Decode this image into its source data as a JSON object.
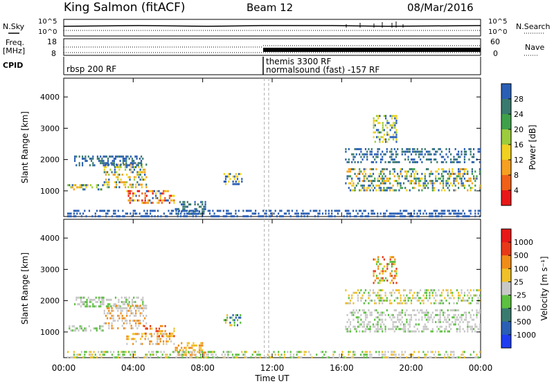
{
  "header": {
    "station": "King Salmon (fitACF)",
    "beam": "Beam 12",
    "date": "08/Mar/2016"
  },
  "left_labels": {
    "nsky": "N.Sky",
    "freq_line1": "Freq.",
    "freq_line2": "[MHz]",
    "cpid": "CPID"
  },
  "right_labels": {
    "nsearch": "N.Search",
    "nave": "Nave"
  },
  "top_axes": {
    "noise_left_ticks": [
      "10^5",
      "10^0"
    ],
    "noise_right_ticks": [
      "10^5",
      "10^0"
    ],
    "freq_ticks": [
      "18",
      "8"
    ],
    "nave_ticks": [
      "60",
      "0"
    ]
  },
  "cpid_labels": [
    {
      "text": "rbsp 200 RF",
      "time": 0.4
    },
    {
      "text": "themis 3300 RF",
      "time": 11.75
    },
    {
      "text": "normalsound (fast) -157 RF",
      "time": 11.75
    }
  ],
  "colors": {
    "power": [
      "#1f3cf0",
      "#2a5fb5",
      "#3a7a6e",
      "#3fa04a",
      "#9ccc3c",
      "#f0d020",
      "#f5a020",
      "#f06018",
      "#e81818"
    ],
    "velocity": [
      "#1f3cf0",
      "#2a5fb5",
      "#3a7a6e",
      "#5cc040",
      "#c8c8c8",
      "#f0c028",
      "#f08c18",
      "#e83818",
      "#e81818"
    ]
  },
  "colorbars": {
    "power": {
      "label": "Power [dB]",
      "ticks": [
        "28",
        "24",
        "20",
        "16",
        "12",
        "8",
        "4"
      ]
    },
    "velocity": {
      "label": "Velocity  [m s⁻¹]",
      "ticks": [
        "1000",
        "500",
        "100",
        "25",
        "-25",
        "-100",
        "-500",
        "-1000"
      ]
    }
  },
  "chart_data": [
    {
      "type": "heatmap",
      "panel": "power",
      "ylabel": "Slant Range [km]",
      "xlabel": "",
      "x_ticks": [
        "00:00",
        "04:00",
        "08:00",
        "12:00",
        "16:00",
        "20:00",
        "00:00"
      ],
      "y_ticks": [
        "1000",
        "2000",
        "3000",
        "4000"
      ],
      "xlim_hours": [
        0,
        24
      ],
      "ylim_km": [
        180,
        4600
      ],
      "dashed_times_hours": [
        11.55,
        11.8
      ],
      "echo_regions": [
        {
          "t0": 0.2,
          "t1": 2.3,
          "r0": 1080,
          "r1": 1280,
          "colors": [
            5,
            4,
            6,
            1,
            2
          ]
        },
        {
          "t0": 2.3,
          "t1": 4.8,
          "r0": 1150,
          "r1": 1950,
          "colors": [
            5,
            6,
            4,
            1,
            2
          ]
        },
        {
          "t0": 3.6,
          "t1": 6.4,
          "r0": 650,
          "r1": 1100,
          "colors": [
            8,
            7,
            6,
            5,
            1
          ]
        },
        {
          "t0": 6.4,
          "t1": 8.2,
          "r0": 300,
          "r1": 750,
          "colors": [
            1,
            2
          ]
        },
        {
          "t0": 0.6,
          "t1": 4.6,
          "r0": 1850,
          "r1": 2200,
          "colors": [
            1,
            2
          ]
        },
        {
          "t0": 9.2,
          "t1": 10.3,
          "r0": 1250,
          "r1": 1650,
          "colors": [
            1,
            5
          ]
        },
        {
          "t0": 16.2,
          "t1": 24.0,
          "r0": 1050,
          "r1": 1800,
          "colors": [
            1,
            2,
            5,
            6,
            3
          ]
        },
        {
          "t0": 16.2,
          "t1": 24.0,
          "r0": 1950,
          "r1": 2450,
          "colors": [
            1,
            2
          ]
        },
        {
          "t0": 17.8,
          "t1": 19.2,
          "r0": 2600,
          "r1": 3500,
          "colors": [
            1,
            4,
            5
          ]
        },
        {
          "t0": 0.2,
          "t1": 24.0,
          "r0": 220,
          "r1": 480,
          "colors": [
            1
          ]
        }
      ]
    },
    {
      "type": "heatmap",
      "panel": "velocity",
      "ylabel": "Slant Range [km]",
      "xlabel": "Time UT",
      "x_ticks": [
        "00:00",
        "04:00",
        "08:00",
        "12:00",
        "16:00",
        "20:00",
        "00:00"
      ],
      "y_ticks": [
        "1000",
        "2000",
        "3000",
        "4000"
      ],
      "xlim_hours": [
        0,
        24
      ],
      "ylim_km": [
        180,
        4600
      ],
      "dashed_times_hours": [
        11.55,
        11.8
      ],
      "echo_regions": [
        {
          "t0": 0.2,
          "t1": 2.3,
          "r0": 1080,
          "r1": 1280,
          "colors": [
            4,
            4,
            3
          ]
        },
        {
          "t0": 0.6,
          "t1": 4.6,
          "r0": 1850,
          "r1": 2200,
          "colors": [
            4,
            4,
            3
          ]
        },
        {
          "t0": 2.3,
          "t1": 4.8,
          "r0": 1150,
          "r1": 1950,
          "colors": [
            4,
            4,
            6
          ]
        },
        {
          "t0": 3.6,
          "t1": 6.4,
          "r0": 650,
          "r1": 1050,
          "colors": [
            4,
            6,
            5
          ]
        },
        {
          "t0": 4.6,
          "t1": 6.4,
          "r0": 900,
          "r1": 1300,
          "colors": [
            5,
            6,
            7
          ]
        },
        {
          "t0": 6.4,
          "t1": 8.2,
          "r0": 300,
          "r1": 750,
          "colors": [
            6,
            5
          ]
        },
        {
          "t0": 9.2,
          "t1": 10.3,
          "r0": 1250,
          "r1": 1650,
          "colors": [
            1,
            3,
            5
          ]
        },
        {
          "t0": 16.2,
          "t1": 24.0,
          "r0": 1050,
          "r1": 1800,
          "colors": [
            4,
            4,
            4,
            3
          ]
        },
        {
          "t0": 16.2,
          "t1": 24.0,
          "r0": 1950,
          "r1": 2450,
          "colors": [
            4,
            3,
            5
          ]
        },
        {
          "t0": 17.8,
          "t1": 19.2,
          "r0": 2600,
          "r1": 3500,
          "colors": [
            5,
            6,
            3,
            7
          ]
        },
        {
          "t0": 0.2,
          "t1": 24.0,
          "r0": 220,
          "r1": 480,
          "colors": [
            3,
            5,
            4
          ]
        }
      ]
    }
  ]
}
